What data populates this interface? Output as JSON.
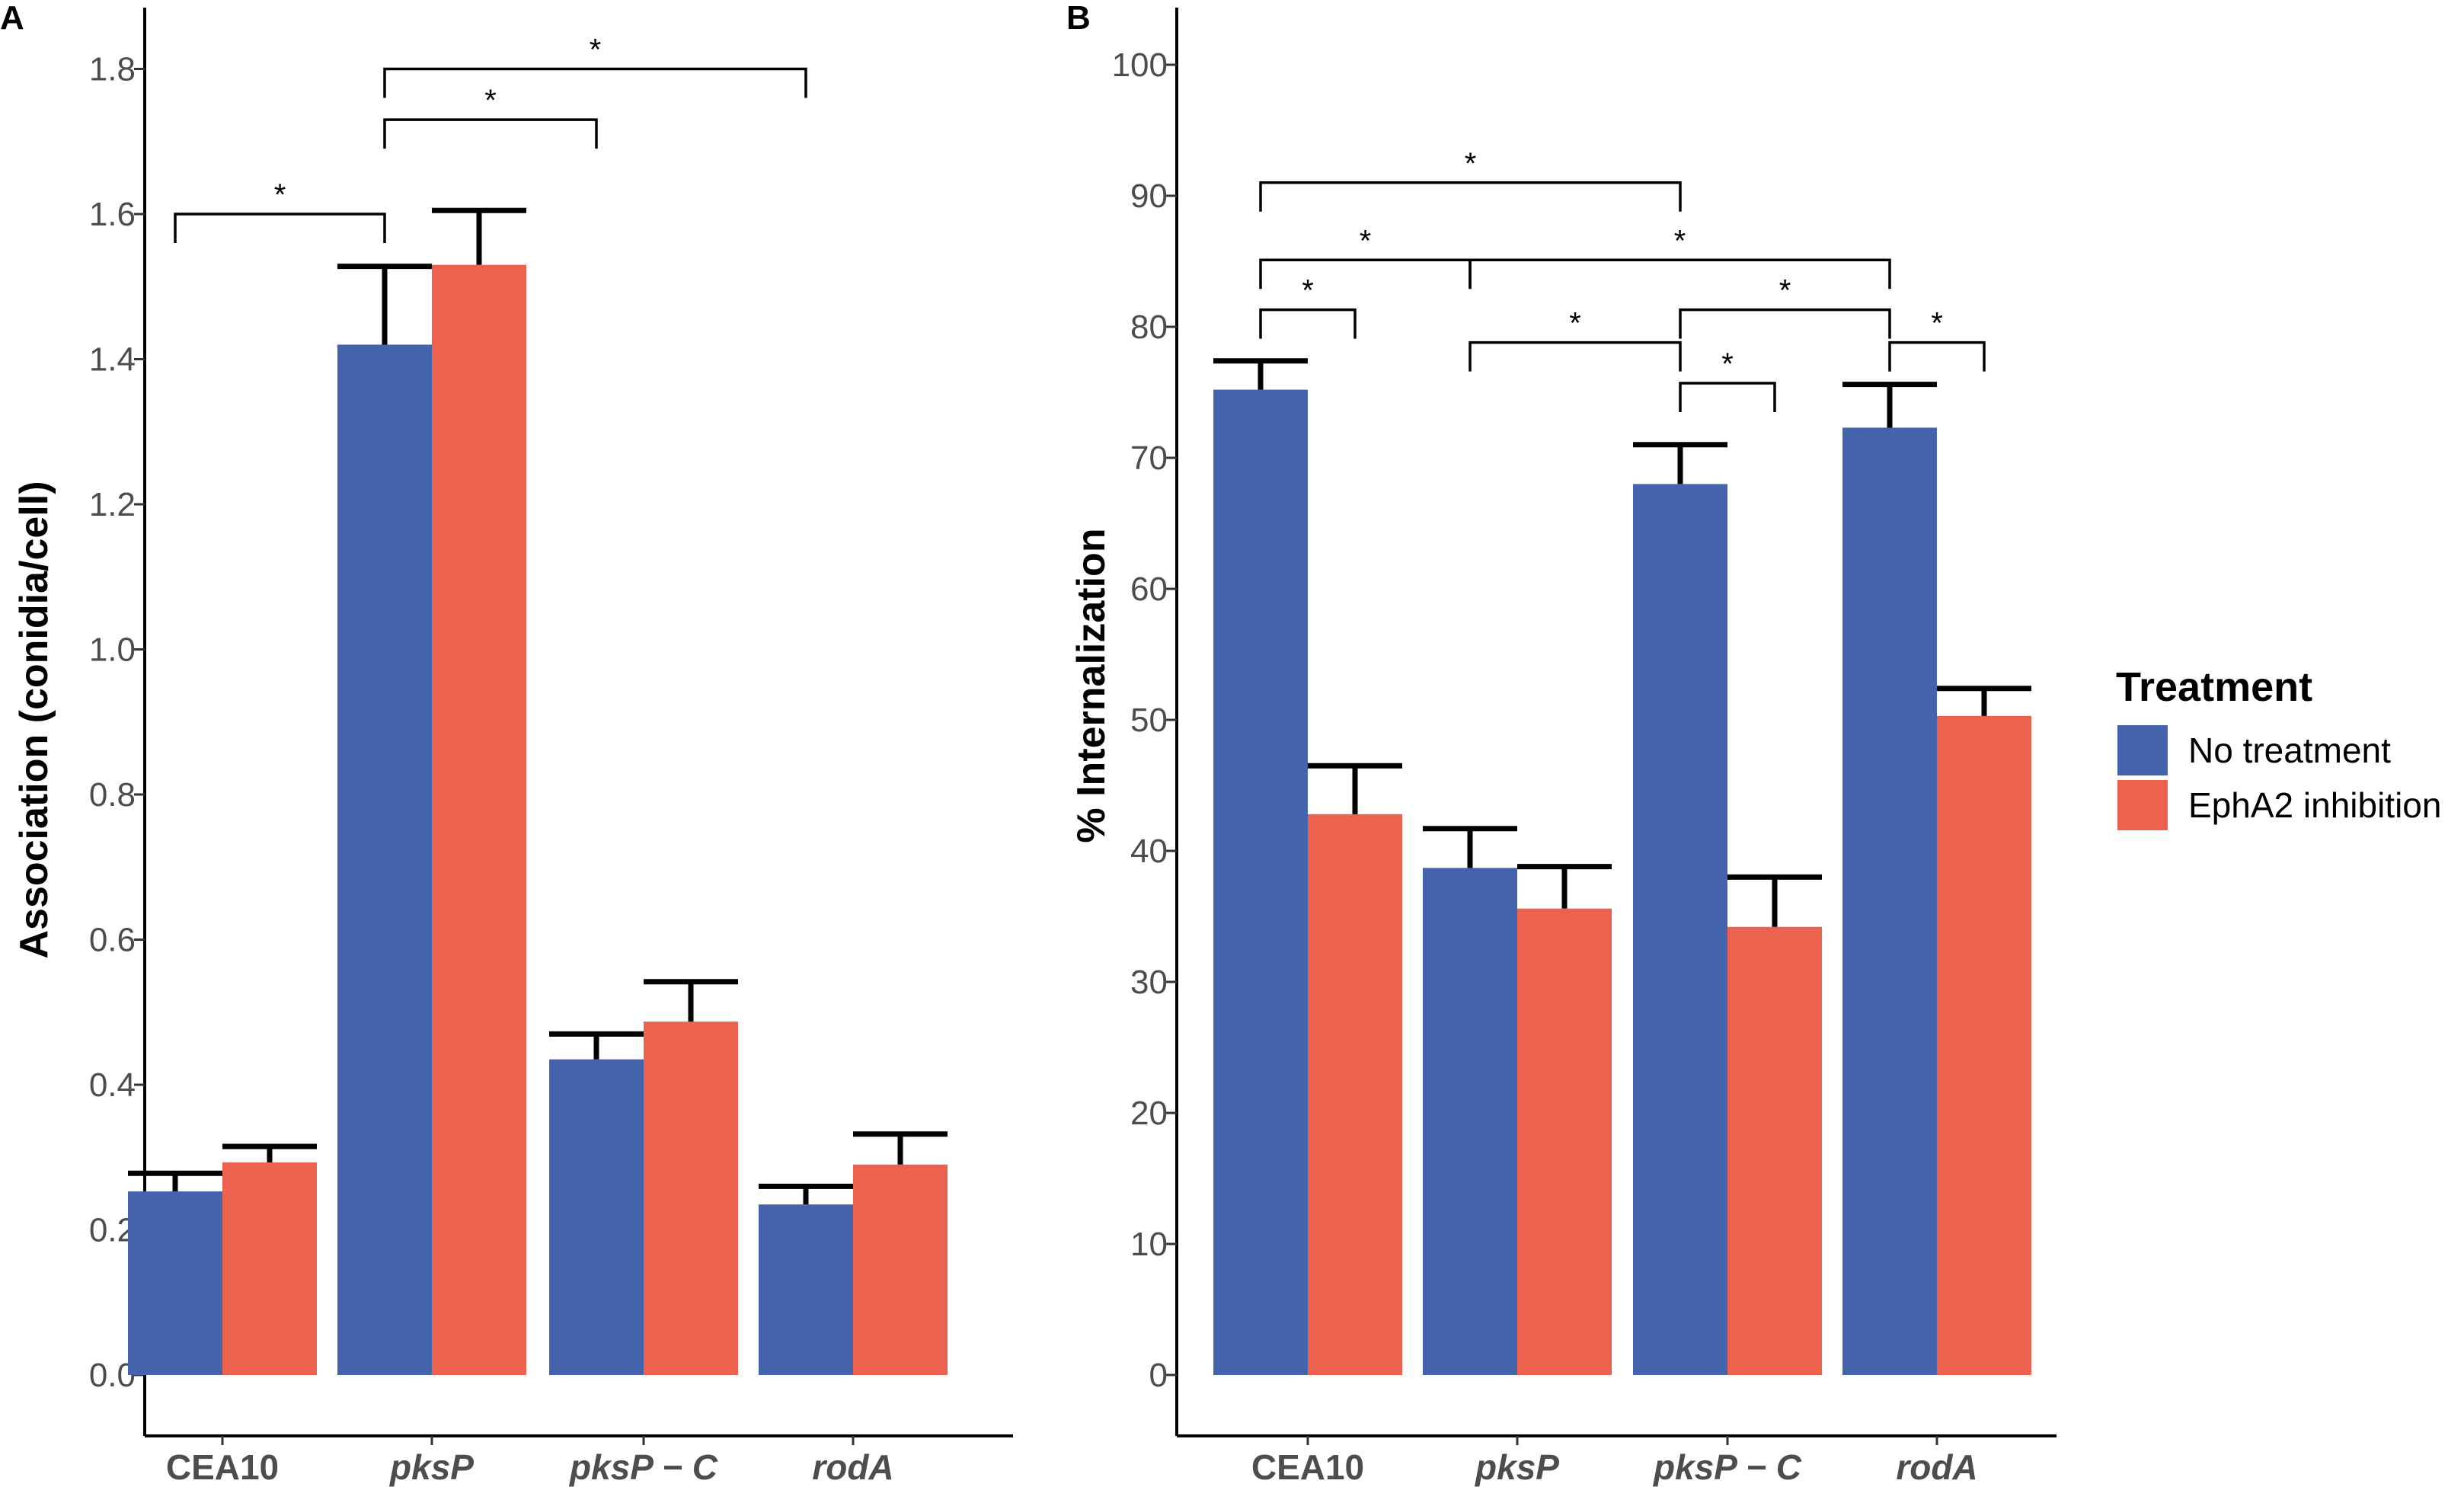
{
  "chart_data": [
    {
      "panel_label": "A",
      "type": "bar",
      "ylabel": "Association (conidia/cell)",
      "xlabel": "",
      "ylim": [
        -0.08,
        1.88
      ],
      "yticks": [
        0.0,
        0.2,
        0.4,
        0.6,
        0.8,
        1.0,
        1.2,
        1.4,
        1.6,
        1.8
      ],
      "ytick_labels": [
        "0.0",
        "0.2",
        "0.4",
        "0.6",
        "0.8",
        "1.0",
        "1.2",
        "1.4",
        "1.6",
        "1.8"
      ],
      "categories": [
        "CEA10",
        "pksP",
        "pksP − C",
        "rodA"
      ],
      "category_italic": [
        false,
        true,
        true,
        true
      ],
      "series": [
        {
          "name": "No treatment",
          "color": "#4363aa",
          "values": [
            0.253,
            1.42,
            0.435,
            0.235
          ],
          "errors": [
            0.025,
            0.108,
            0.035,
            0.025
          ]
        },
        {
          "name": "EphA2 inhibition",
          "color": "#ec624e",
          "values": [
            0.293,
            1.53,
            0.487,
            0.29
          ],
          "errors": [
            0.022,
            0.075,
            0.055,
            0.042
          ]
        }
      ],
      "significance": [
        {
          "from": [
            0,
            0
          ],
          "to": [
            1,
            0
          ],
          "y": 1.6,
          "label": "*"
        },
        {
          "from": [
            1,
            0
          ],
          "to": [
            2,
            0
          ],
          "y": 1.73,
          "label": "*"
        },
        {
          "from": [
            1,
            0
          ],
          "to": [
            3,
            0
          ],
          "y": 1.8,
          "label": "*"
        }
      ]
    },
    {
      "panel_label": "B",
      "type": "bar",
      "ylabel": "% Internalization",
      "xlabel": "",
      "ylim": [
        -5,
        105
      ],
      "yticks": [
        0,
        10,
        20,
        30,
        40,
        50,
        60,
        70,
        80,
        90,
        100
      ],
      "ytick_labels": [
        "0",
        "10",
        "20",
        "30",
        "40",
        "50",
        "60",
        "70",
        "80",
        "90",
        "100"
      ],
      "categories": [
        "CEA10",
        "pksP",
        "pksP − C",
        "rodA"
      ],
      "category_italic": [
        false,
        true,
        true,
        true
      ],
      "series": [
        {
          "name": "No treatment",
          "color": "#4363aa",
          "values": [
            75.2,
            38.7,
            68.0,
            72.3
          ],
          "errors": [
            2.2,
            3.0,
            3.0,
            3.3
          ]
        },
        {
          "name": "EphA2 inhibition",
          "color": "#ec624e",
          "values": [
            42.8,
            35.6,
            34.2,
            50.3
          ],
          "errors": [
            3.7,
            3.2,
            3.8,
            2.1
          ]
        }
      ],
      "significance": [
        {
          "from": [
            0,
            0
          ],
          "to": [
            0,
            1
          ],
          "y": 81.3,
          "label": "*"
        },
        {
          "from": [
            0,
            0
          ],
          "to": [
            1,
            0
          ],
          "y": 85.1,
          "label": "*"
        },
        {
          "from": [
            0,
            0
          ],
          "to": [
            2,
            0
          ],
          "y": 91.0,
          "label": "*"
        },
        {
          "from": [
            1,
            0
          ],
          "to": [
            2,
            0
          ],
          "y": 78.8,
          "label": "*"
        },
        {
          "from": [
            1,
            0
          ],
          "to": [
            3,
            0
          ],
          "y": 85.1,
          "label": "*"
        },
        {
          "from": [
            2,
            0
          ],
          "to": [
            2,
            1
          ],
          "y": 75.7,
          "label": "*"
        },
        {
          "from": [
            2,
            0
          ],
          "to": [
            3,
            0
          ],
          "y": 81.3,
          "label": "*"
        },
        {
          "from": [
            3,
            0
          ],
          "to": [
            3,
            1
          ],
          "y": 78.8,
          "label": "*"
        }
      ]
    }
  ],
  "legend": {
    "title": "Treatment",
    "position": "right",
    "items": [
      {
        "label": "No treatment",
        "color": "#4363aa"
      },
      {
        "label": "EphA2 inhibition",
        "color": "#ec624e"
      }
    ]
  }
}
